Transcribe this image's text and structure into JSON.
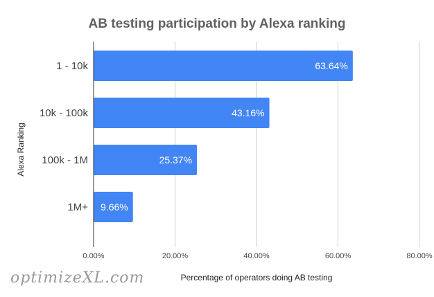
{
  "chart_data": {
    "type": "bar",
    "orientation": "horizontal",
    "title": "AB testing participation by Alexa ranking",
    "xlabel": "Percentage of operators doing AB testing",
    "ylabel": "Alexa Ranking",
    "categories": [
      "1 - 10k",
      "10k - 100k",
      "100k - 1M",
      "1M+"
    ],
    "values": [
      63.64,
      43.16,
      25.37,
      9.66
    ],
    "value_labels": [
      "63.64%",
      "43.16%",
      "25.37%",
      "9.66%"
    ],
    "xlim": [
      0,
      80
    ],
    "x_ticks": [
      0,
      20,
      40,
      60,
      80
    ],
    "x_tick_labels": [
      "0.00%",
      "20.00%",
      "40.00%",
      "60.00%",
      "80.00%"
    ],
    "grid": true,
    "bar_color": "#4285f4"
  },
  "watermark": "optimizeXL.com"
}
